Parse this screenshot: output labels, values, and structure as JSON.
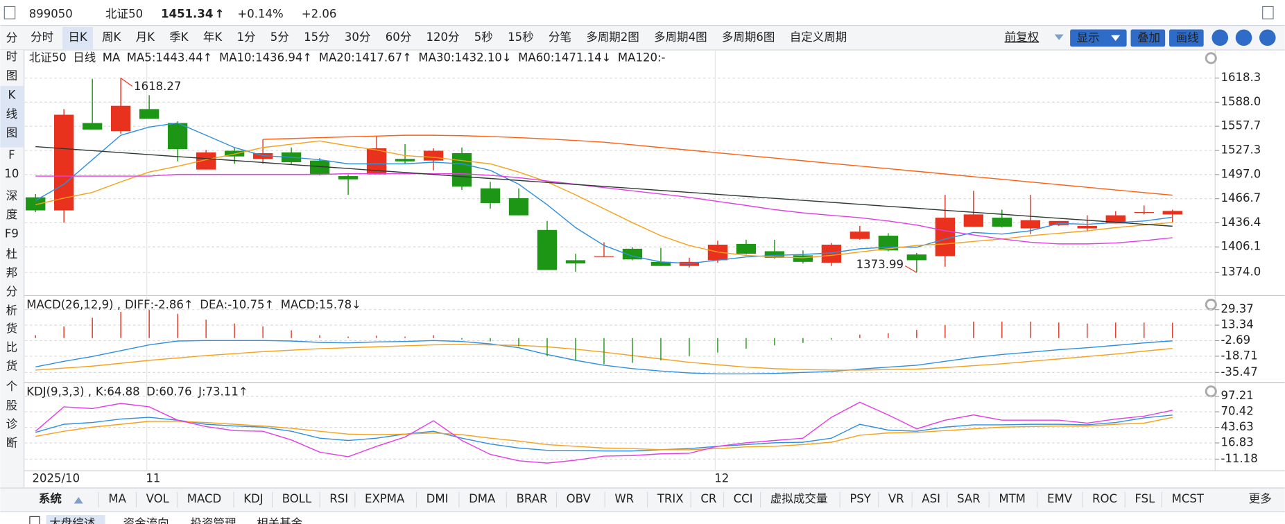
{
  "header": {
    "code": "899050",
    "name": "北证50",
    "price": "1451.34",
    "arrow": "↑",
    "change_pct": "+0.14%",
    "change": "+2.06"
  },
  "toolbar": {
    "periods": [
      "分时",
      "日K",
      "周K",
      "月K",
      "季K",
      "年K",
      "1分",
      "5分",
      "15分",
      "30分",
      "60分",
      "120分",
      "5秒",
      "15秒",
      "分笔",
      "多周期2图",
      "多周期4图",
      "多周期6图",
      "自定义周期"
    ],
    "selected": 1
  },
  "right_controls": {
    "adjust": "前复权",
    "buttons": [
      "显示",
      "叠加",
      "画线"
    ]
  },
  "side_tabs": {
    "items": [
      [
        "分",
        "时",
        "图"
      ],
      [
        "K",
        "线",
        "图"
      ],
      [
        "F",
        "10"
      ],
      [
        "深",
        "度",
        "F9"
      ],
      [
        "杜",
        "邦",
        "分",
        "析"
      ],
      [
        "货",
        "比",
        "货"
      ],
      [
        "个",
        "股",
        "诊",
        "断"
      ]
    ],
    "selected": 1
  },
  "chart_data": [
    {
      "type": "candlestick",
      "title": "北证50",
      "period": "日线",
      "indicator": "MA",
      "categories": [
        "2025/10",
        null,
        null,
        null,
        "11",
        null,
        null,
        null,
        null,
        null,
        null,
        null,
        null,
        null,
        null,
        null,
        null,
        null,
        null,
        null,
        null,
        null,
        null,
        null,
        "12",
        null,
        null,
        null,
        null,
        null,
        null,
        null,
        null,
        null,
        null,
        null,
        null,
        null,
        null,
        null,
        null
      ],
      "open": [
        1468.4,
        1452.0,
        1561.8,
        1551.6,
        1579.3,
        1561.8,
        1503.3,
        1526.9,
        1516.7,
        1524.9,
        1514.6,
        1495.1,
        1497.2,
        1516.7,
        1514.6,
        1523.9,
        1479.7,
        1467.4,
        1427.4,
        1389.4,
        1393.5,
        1403.8,
        1387.3,
        1382.2,
        1389.4,
        1409.9,
        1400.7,
        1395.5,
        1386.3,
        1416.1,
        1420.2,
        1396.6,
        1394.5,
        1431.5,
        1442.8,
        1429.4,
        1433.5,
        1429.4,
        1435.6,
        1448.9,
        1446.9
      ],
      "high": [
        1472.5,
        1579.3,
        1617.3,
        1618.3,
        1596.8,
        1563.9,
        1528.0,
        1531.0,
        1541.3,
        1531.0,
        1517.7,
        1497.2,
        1545.4,
        1535.2,
        1530.0,
        1531.0,
        1487.9,
        1479.7,
        1438.7,
        1397.6,
        1412.0,
        1405.8,
        1404.8,
        1392.5,
        1414.0,
        1415.1,
        1415.1,
        1401.7,
        1411.0,
        1432.5,
        1423.3,
        1398.6,
        1471.5,
        1476.6,
        1453.0,
        1471.5,
        1438.7,
        1445.8,
        1451.0,
        1458.2,
        1453.0
      ],
      "low": [
        1449.9,
        1436.6,
        1553.6,
        1548.5,
        1567.0,
        1513.6,
        1503.3,
        1510.5,
        1510.5,
        1510.5,
        1496.1,
        1471.5,
        1497.2,
        1510.5,
        1502.3,
        1477.7,
        1454.1,
        1445.8,
        1377.1,
        1375.0,
        1393.5,
        1389.4,
        1382.2,
        1380.2,
        1386.3,
        1396.6,
        1391.4,
        1385.3,
        1382.2,
        1415.1,
        1400.7,
        1374.0,
        1381.2,
        1431.5,
        1430.4,
        1422.2,
        1432.5,
        1425.3,
        1435.6,
        1446.9,
        1436.6
      ],
      "close": [
        1452.0,
        1572.2,
        1553.6,
        1583.4,
        1567.0,
        1529.0,
        1524.9,
        1519.8,
        1523.9,
        1512.6,
        1497.2,
        1491.0,
        1530.0,
        1513.6,
        1526.9,
        1481.8,
        1461.2,
        1445.8,
        1377.1,
        1385.3,
        1394.5,
        1390.4,
        1382.2,
        1387.3,
        1408.9,
        1397.6,
        1392.5,
        1387.3,
        1408.9,
        1425.3,
        1401.7,
        1389.4,
        1442.8,
        1446.9,
        1431.5,
        1439.7,
        1438.7,
        1432.5,
        1445.8,
        1449.9,
        1451.34
      ],
      "up_color": "#e8321e",
      "down_color": "#1e9615",
      "high_label": "1618.27",
      "low_label": "1373.99",
      "ylim": [
        1346,
        1632
      ],
      "yticks": [
        1618.3,
        {
          "value": 1588.0,
          "label": "1588.0"
        },
        1557.7,
        1527.3,
        {
          "value": 1497.0,
          "label": "1497.0"
        },
        1466.7,
        1436.4,
        1406.1,
        {
          "value": 1374.0,
          "label": "1374.0"
        }
      ],
      "grid": true,
      "series": [
        {
          "name": "MA5",
          "label": ":1443.44↑",
          "color": "#2f8fe0",
          "values": [
            1464.3,
            1484.9,
            1515.6,
            1546.4,
            1556.7,
            1561.8,
            1546.4,
            1531.0,
            1520.8,
            1518.7,
            1515.6,
            1510.5,
            1510.5,
            1510.5,
            1512.6,
            1510.5,
            1502.3,
            1484.9,
            1459.2,
            1430.4,
            1407.9,
            1394.5,
            1387.3,
            1385.3,
            1389.4,
            1393.5,
            1395.5,
            1396.6,
            1398.6,
            1403.8,
            1405.8,
            1405.8,
            1416.1,
            1424.3,
            1422.2,
            1426.3,
            1435.6,
            1434.6,
            1436.6,
            1438.7,
            1443.44
          ]
        },
        {
          "name": "MA10",
          "label": ":1436.94↑",
          "color": "#f5a21a",
          "values": [
            1459.2,
            1467.4,
            1474.6,
            1487.9,
            1500.2,
            1507.4,
            1515.6,
            1522.8,
            1531.0,
            1535.2,
            1539.3,
            1533.1,
            1528.0,
            1520.8,
            1518.7,
            1514.6,
            1510.5,
            1500.2,
            1487.9,
            1471.5,
            1454.1,
            1436.6,
            1420.2,
            1407.9,
            1399.7,
            1395.5,
            1393.5,
            1392.5,
            1395.5,
            1399.7,
            1403.8,
            1407.9,
            1409.9,
            1413.0,
            1416.1,
            1420.2,
            1423.3,
            1426.3,
            1430.4,
            1433.5,
            1436.94
          ]
        },
        {
          "name": "MA20",
          "label": ":1417.67↑",
          "color": "#e33ee3",
          "values": [
            1495.1,
            1495.1,
            1495.1,
            1495.1,
            1495.1,
            1497.2,
            1497.2,
            1497.2,
            1497.2,
            1497.2,
            1497.2,
            1498.2,
            1498.2,
            1498.2,
            1498.2,
            1498.2,
            1496.1,
            1493.1,
            1489.0,
            1484.9,
            1480.7,
            1476.6,
            1472.5,
            1468.4,
            1463.3,
            1458.2,
            1453.0,
            1448.9,
            1445.8,
            1442.8,
            1438.7,
            1433.5,
            1426.3,
            1421.2,
            1416.1,
            1412.0,
            1409.9,
            1409.9,
            1411.0,
            1414.0,
            1417.67
          ]
        },
        {
          "name": "MA30",
          "label": ":1432.10↓",
          "color": "#2f3a33",
          "values": [
            1532.1,
            1529.6,
            1527.1,
            1524.6,
            1522.1,
            1519.6,
            1517.1,
            1514.6,
            1512.1,
            1509.6,
            1507.1,
            1504.6,
            1502.1,
            1499.6,
            1497.1,
            1494.6,
            1492.1,
            1489.6,
            1487.1,
            1484.6,
            1482.1,
            1479.6,
            1477.1,
            1474.6,
            1472.1,
            1469.6,
            1467.1,
            1464.6,
            1462.1,
            1459.6,
            1457.1,
            1454.6,
            1452.1,
            1449.6,
            1447.1,
            1444.6,
            1442.1,
            1439.6,
            1437.1,
            1434.6,
            1432.1
          ]
        },
        {
          "name": "MA60",
          "label": ":1471.14↓",
          "color": "#ff6010",
          "values": [
            null,
            null,
            null,
            null,
            null,
            null,
            null,
            null,
            1541.3,
            1542.3,
            1543.4,
            1544.4,
            1545.4,
            1546.4,
            1546.4,
            1545.9,
            1544.9,
            1543.4,
            1541.8,
            1539.8,
            1537.7,
            1534.4,
            1531.0,
            1527.7,
            1524.4,
            1521.0,
            1517.7,
            1514.4,
            1511.0,
            1507.7,
            1504.4,
            1501.1,
            1497.7,
            1494.4,
            1491.1,
            1487.7,
            1484.4,
            1481.1,
            1477.7,
            1474.4,
            1471.14
          ]
        },
        {
          "name": "MA120",
          "label": ":-",
          "color": "#7b3fb0"
        }
      ]
    },
    {
      "type": "macd",
      "title": "MACD(26,12,9) ,",
      "ylim": [
        -44,
        43
      ],
      "yticks": [
        29.37,
        13.34,
        -2.69,
        -18.71,
        -35.47
      ],
      "grid": true,
      "up_color": "#e8321e",
      "down_color": "#1e9615",
      "series": [
        {
          "name": "DIFF",
          "label": ":-2.86↑",
          "color": "#2f8fe0",
          "values": [
            -29.7,
            -24,
            -19,
            -13,
            -7,
            -3,
            -2.5,
            -2.5,
            -2.5,
            -3,
            -4.5,
            -5,
            -4,
            -3.5,
            -2.5,
            -3.5,
            -6,
            -10,
            -17,
            -23,
            -28,
            -31.5,
            -34,
            -36,
            -37,
            -37,
            -36.5,
            -35.5,
            -34.5,
            -32,
            -30,
            -28,
            -24,
            -20,
            -17,
            -14.5,
            -12,
            -10,
            -7.5,
            -5,
            -2.86
          ]
        },
        {
          "name": "DEA",
          "label": ":-10.75↑",
          "color": "#f5a21a",
          "values": [
            -33,
            -31,
            -29,
            -26,
            -23,
            -20.5,
            -18,
            -16,
            -14,
            -12.5,
            -11,
            -10,
            -9,
            -8,
            -7,
            -6.5,
            -7,
            -7.5,
            -9,
            -11.5,
            -14.5,
            -18,
            -21.5,
            -25,
            -27.5,
            -30,
            -31.5,
            -32.5,
            -33,
            -33,
            -32.5,
            -32,
            -30.5,
            -28.5,
            -26.5,
            -24,
            -21.5,
            -19,
            -16.5,
            -13.5,
            -10.75
          ]
        },
        {
          "name": "MACD",
          "label": ":15.78↓",
          "color": "#e33ee3",
          "bars": true,
          "values": [
            3,
            12,
            21,
            27,
            29,
            25,
            19,
            15,
            12,
            8,
            3,
            1.5,
            2.5,
            1.5,
            3,
            -1.5,
            -3.5,
            -8.5,
            -18.5,
            -23.5,
            -27,
            -25.5,
            -23,
            -18.5,
            -15,
            -11,
            -7.5,
            -5,
            -1.5,
            3.5,
            5,
            8.5,
            13.5,
            17,
            17,
            17,
            16,
            15,
            16,
            16,
            15.78
          ]
        }
      ]
    },
    {
      "type": "line",
      "title": "KDJ(9,3,3) ,",
      "ylim": [
        -27,
        117
      ],
      "yticks": [
        97.21,
        70.42,
        43.63,
        16.83,
        -11.18
      ],
      "grid": true,
      "series": [
        {
          "name": "K",
          "label": ":64.88",
          "color": "#2f8fe0",
          "values": [
            35,
            49,
            52,
            58,
            61,
            56,
            49,
            46,
            44,
            37,
            25,
            21,
            25,
            32,
            37,
            25,
            15,
            8,
            4,
            4,
            3,
            3,
            5,
            7,
            11,
            14,
            17,
            18,
            25,
            49,
            39,
            37,
            44,
            48,
            48,
            49,
            49,
            48,
            52,
            60,
            64.88
          ]
        },
        {
          "name": "D",
          "label": ":60.76",
          "color": "#f5a21a",
          "values": [
            28,
            37,
            44,
            49,
            54,
            54,
            52,
            49,
            46,
            42,
            37,
            32,
            31,
            32,
            34,
            31,
            25,
            20,
            14,
            11,
            8,
            7,
            5,
            5,
            7,
            10,
            11,
            14,
            18,
            30,
            34,
            35,
            38,
            41,
            44,
            45,
            46,
            46,
            49,
            51,
            60.76
          ]
        },
        {
          "name": "J",
          "label": ":73.11↑",
          "color": "#e33ee3",
          "values": [
            37,
            79,
            76,
            85,
            79,
            56,
            45,
            38,
            37,
            22,
            1,
            -7,
            11,
            27,
            55,
            21,
            -3,
            -14,
            -18,
            -13,
            -6,
            -5,
            -2,
            -1,
            11,
            17,
            21,
            25,
            61,
            87,
            65,
            41,
            56,
            65,
            56,
            56,
            56,
            51,
            58,
            63,
            73.11
          ]
        }
      ]
    }
  ],
  "indicator_tabs": {
    "system": "系统",
    "items": [
      "MA",
      "VOL",
      "MACD",
      "KDJ",
      "BOLL",
      "RSI",
      "EXPMA",
      "DMI",
      "DMA",
      "BRAR",
      "OBV",
      "WR",
      "TRIX",
      "CR",
      "CCI",
      "虚拟成交量",
      "PSY",
      "VR",
      "ASI",
      "SAR",
      "MTM",
      "EMV",
      "ROC",
      "FSL",
      "MCST"
    ],
    "selected": 0,
    "more": "更多"
  },
  "bottom_tabs": {
    "items": [
      "大盘综述",
      "资金流向",
      "投资管理",
      "相关基金"
    ],
    "selected": 0
  }
}
